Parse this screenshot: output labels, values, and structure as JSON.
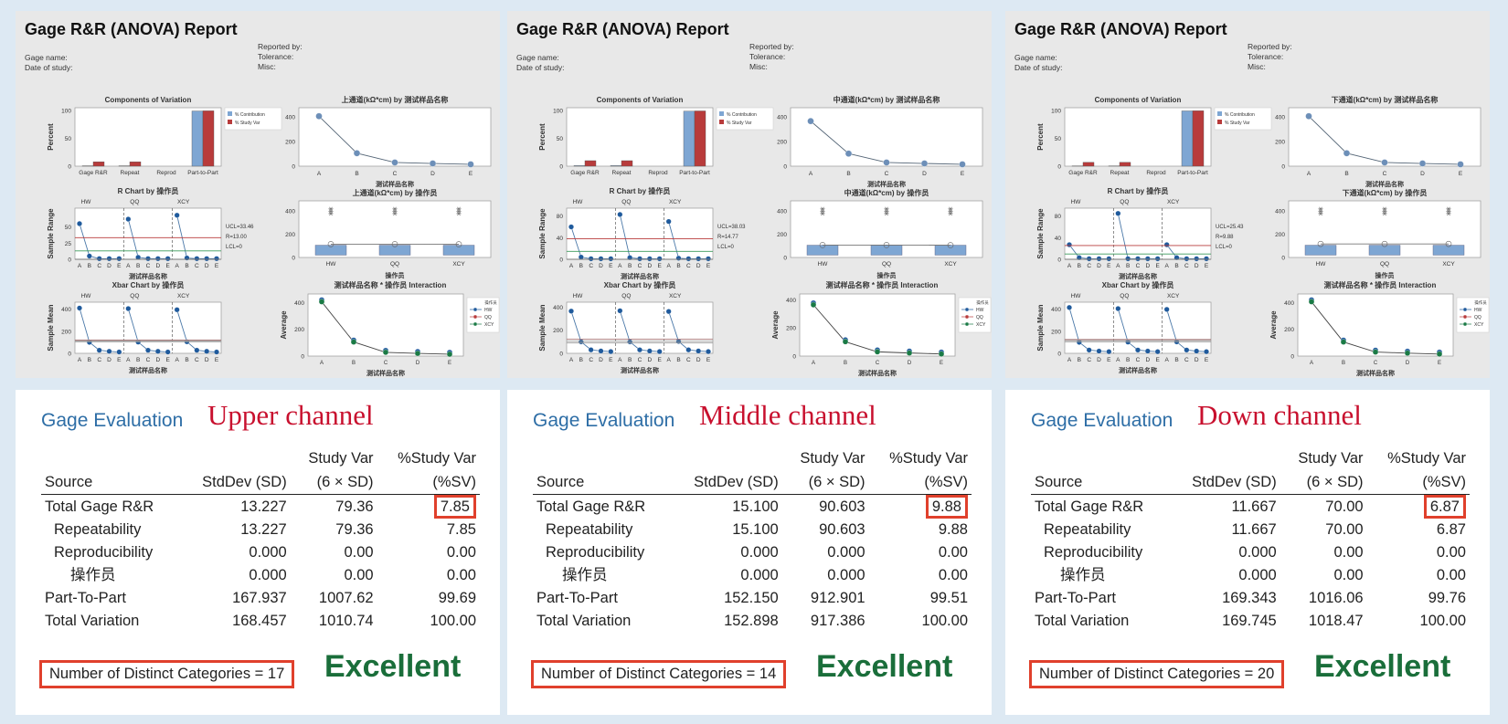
{
  "report_title": "Gage R&R (ANOVA) Report",
  "meta_left": [
    "Gage name:",
    "Date of study:"
  ],
  "meta_right": [
    "Reported by:",
    "Tolerance:",
    "Misc:"
  ],
  "labels": {
    "components_title": "Components of Variation",
    "percent_axis": "Percent",
    "legend_contribution": "% Contribution",
    "legend_study_var": "% Study Var",
    "components_categories": [
      "Gage R&R",
      "Repeat",
      "Reprod",
      "Part-to-Part"
    ],
    "r_chart_title": "R Chart by 操作员",
    "r_axis": "Sample Range",
    "xbar_chart_title": "Xbar Chart by 操作员",
    "xbar_axis": "Sample Mean",
    "part_axis_title": "测试样品名称",
    "operator_axis_title": "操作员",
    "interaction_title": "测试样品名称 * 操作员 Interaction",
    "average_axis": "Average",
    "parts": [
      "A",
      "B",
      "C",
      "D",
      "E"
    ],
    "operators": [
      "HW",
      "QQ",
      "XCY"
    ],
    "legend_operator_title": "操作员"
  },
  "evaluation_labels": {
    "title": "Gage Evaluation",
    "col_source": "Source",
    "col_stddev": "StdDev (SD)",
    "col_studyvar_1": "Study Var",
    "col_studyvar_2": "(6 × SD)",
    "col_pct_1": "%Study Var",
    "col_pct_2": "(%SV)",
    "verdict": "Excellent"
  },
  "colors": {
    "blue": "#1f5a9c",
    "red": "#b83b3b",
    "green": "#1a7a45",
    "bar_blue": "#7ea6d3",
    "highlight": "#e0402c"
  },
  "chart_data": [
    {
      "channel": "Upper channel",
      "by_part_title": "上通道(kΩ*cm) by 测试样品名称",
      "by_operator_title": "上通道(kΩ*cm) by 操作员",
      "components": {
        "type": "bar",
        "contribution": [
          0.62,
          0.62,
          0,
          99.38
        ],
        "study_var": [
          7.85,
          7.85,
          0,
          99.69
        ],
        "ylim": [
          0,
          100
        ],
        "yticks": [
          0,
          50,
          100
        ]
      },
      "r_chart": {
        "type": "line",
        "ylim": [
          0,
          75
        ],
        "yticks": [
          0,
          25,
          50
        ],
        "values": [
          [
            55,
            5,
            1,
            1,
            1
          ],
          [
            62,
            3,
            1,
            1,
            1
          ],
          [
            68,
            2,
            1,
            1,
            1
          ]
        ],
        "ucl": 33.46,
        "rbar": 13.0,
        "lcl": 0,
        "ucl_label": "UCL=33.46",
        "rbar_label": "R=13.00",
        "lcl_label": "LCL=0"
      },
      "xbar_chart": {
        "type": "line",
        "ylim": [
          0,
          440
        ],
        "yticks": [
          0,
          200,
          400
        ],
        "values": [
          [
            410,
            100,
            28,
            18,
            12
          ],
          [
            405,
            102,
            28,
            18,
            12
          ],
          [
            395,
            105,
            28,
            18,
            12
          ]
        ],
        "ucl": 120,
        "mean": 113,
        "lcl": 105
      },
      "by_part": {
        "type": "line",
        "ylim": [
          0,
          450
        ],
        "yticks": [
          0,
          200,
          400
        ],
        "values": [
          405,
          105,
          30,
          22,
          15
        ]
      },
      "by_operator": {
        "type": "box",
        "ylim": [
          0,
          460
        ],
        "yticks": [
          0,
          200,
          400
        ],
        "means": [
          114,
          114,
          113
        ]
      },
      "interaction": {
        "type": "line",
        "ylim": [
          0,
          440
        ],
        "yticks": [
          0,
          200,
          400
        ],
        "values": [
          405,
          105,
          28,
          20,
          14
        ]
      }
    },
    {
      "channel": "Middle channel",
      "by_part_title": "中通道(kΩ*cm) by 测试样品名称",
      "by_operator_title": "中通道(kΩ*cm) by 操作员",
      "components": {
        "type": "bar",
        "contribution": [
          0.98,
          0.98,
          0,
          99.02
        ],
        "study_var": [
          9.88,
          9.88,
          0,
          99.51
        ],
        "ylim": [
          0,
          100
        ],
        "yticks": [
          0,
          50,
          100
        ]
      },
      "r_chart": {
        "type": "line",
        "ylim": [
          0,
          90
        ],
        "yticks": [
          0,
          40,
          80
        ],
        "values": [
          [
            60,
            4,
            1,
            1,
            1
          ],
          [
            83,
            3,
            1,
            1,
            1
          ],
          [
            70,
            2,
            1,
            1,
            1
          ]
        ],
        "ucl": 38.03,
        "rbar": 14.77,
        "lcl": 0,
        "ucl_label": "UCL=38.03",
        "rbar_label": "R=14.77",
        "lcl_label": "LCL=0"
      },
      "xbar_chart": {
        "type": "line",
        "ylim": [
          0,
          420
        ],
        "yticks": [
          0,
          200,
          400
        ],
        "values": [
          [
            365,
            100,
            30,
            20,
            15
          ],
          [
            368,
            100,
            30,
            20,
            15
          ],
          [
            362,
            103,
            30,
            20,
            15
          ]
        ],
        "ucl": 122,
        "mean": 105,
        "lcl": 90
      },
      "by_part": {
        "type": "line",
        "ylim": [
          0,
          450
        ],
        "yticks": [
          0,
          200,
          400
        ],
        "values": [
          365,
          102,
          30,
          22,
          15
        ]
      },
      "by_operator": {
        "type": "box",
        "ylim": [
          0,
          460
        ],
        "yticks": [
          0,
          200,
          400
        ],
        "means": [
          106,
          106,
          105
        ]
      },
      "interaction": {
        "type": "line",
        "ylim": [
          0,
          420
        ],
        "yticks": [
          0,
          200,
          400
        ],
        "values": [
          365,
          102,
          30,
          22,
          15
        ]
      }
    },
    {
      "channel": "Down channel",
      "by_part_title": "下通道(kΩ*cm) by 测试样品名称",
      "by_operator_title": "下通道(kΩ*cm) by 操作员",
      "components": {
        "type": "bar",
        "contribution": [
          0.47,
          0.47,
          0,
          99.53
        ],
        "study_var": [
          6.87,
          6.87,
          0,
          99.76
        ],
        "ylim": [
          0,
          100
        ],
        "yticks": [
          0,
          50,
          100
        ]
      },
      "r_chart": {
        "type": "line",
        "ylim": [
          0,
          90
        ],
        "yticks": [
          0,
          40,
          80
        ],
        "values": [
          [
            27,
            3,
            1,
            1,
            1
          ],
          [
            85,
            1,
            1,
            1,
            1
          ],
          [
            27,
            3,
            1,
            1,
            1
          ]
        ],
        "ucl": 25.43,
        "rbar": 9.88,
        "lcl": 0,
        "ucl_label": "UCL=25.43",
        "rbar_label": "R=9.88",
        "lcl_label": "LCL=0"
      },
      "xbar_chart": {
        "type": "line",
        "ylim": [
          0,
          440
        ],
        "yticks": [
          0,
          200,
          400
        ],
        "values": [
          [
            415,
            100,
            30,
            20,
            15
          ],
          [
            405,
            102,
            30,
            20,
            15
          ],
          [
            398,
            104,
            30,
            20,
            15
          ]
        ],
        "ucl": 125,
        "mean": 116,
        "lcl": 105
      },
      "by_part": {
        "type": "line",
        "ylim": [
          0,
          450
        ],
        "yticks": [
          0,
          200,
          400
        ],
        "values": [
          405,
          105,
          30,
          22,
          15
        ]
      },
      "by_operator": {
        "type": "box",
        "ylim": [
          0,
          460
        ],
        "yticks": [
          0,
          200,
          400
        ],
        "means": [
          116,
          116,
          116
        ]
      },
      "interaction": {
        "type": "line",
        "ylim": [
          0,
          440
        ],
        "yticks": [
          0,
          200,
          400
        ],
        "values": [
          405,
          105,
          30,
          22,
          15
        ]
      }
    }
  ],
  "evaluations": [
    {
      "channel": "Upper channel",
      "rows": [
        {
          "source": "Total Gage R&R",
          "sd": "13.227",
          "sv": "79.36",
          "pct": "7.85"
        },
        {
          "source": "Repeatability",
          "sd": "13.227",
          "sv": "79.36",
          "pct": "7.85"
        },
        {
          "source": "Reproducibility",
          "sd": "0.000",
          "sv": "0.00",
          "pct": "0.00"
        },
        {
          "source": "操作员",
          "sd": "0.000",
          "sv": "0.00",
          "pct": "0.00"
        },
        {
          "source": "Part-To-Part",
          "sd": "167.937",
          "sv": "1007.62",
          "pct": "99.69"
        },
        {
          "source": "Total Variation",
          "sd": "168.457",
          "sv": "1010.74",
          "pct": "100.00"
        }
      ],
      "ndc": "Number of Distinct Categories = 17"
    },
    {
      "channel": "Middle channel",
      "rows": [
        {
          "source": "Total Gage R&R",
          "sd": "15.100",
          "sv": "90.603",
          "pct": "9.88"
        },
        {
          "source": "Repeatability",
          "sd": "15.100",
          "sv": "90.603",
          "pct": "9.88"
        },
        {
          "source": "Reproducibility",
          "sd": "0.000",
          "sv": "0.000",
          "pct": "0.00"
        },
        {
          "source": "操作员",
          "sd": "0.000",
          "sv": "0.000",
          "pct": "0.00"
        },
        {
          "source": "Part-To-Part",
          "sd": "152.150",
          "sv": "912.901",
          "pct": "99.51"
        },
        {
          "source": "Total Variation",
          "sd": "152.898",
          "sv": "917.386",
          "pct": "100.00"
        }
      ],
      "ndc": "Number of Distinct Categories = 14"
    },
    {
      "channel": "Down channel",
      "rows": [
        {
          "source": "Total Gage R&R",
          "sd": "11.667",
          "sv": "70.00",
          "pct": "6.87"
        },
        {
          "source": "Repeatability",
          "sd": "11.667",
          "sv": "70.00",
          "pct": "6.87"
        },
        {
          "source": "Reproducibility",
          "sd": "0.000",
          "sv": "0.00",
          "pct": "0.00"
        },
        {
          "source": "操作员",
          "sd": "0.000",
          "sv": "0.00",
          "pct": "0.00"
        },
        {
          "source": "Part-To-Part",
          "sd": "169.343",
          "sv": "1016.06",
          "pct": "99.76"
        },
        {
          "source": "Total Variation",
          "sd": "169.745",
          "sv": "1018.47",
          "pct": "100.00"
        }
      ],
      "ndc": "Number of Distinct Categories = 20"
    }
  ]
}
